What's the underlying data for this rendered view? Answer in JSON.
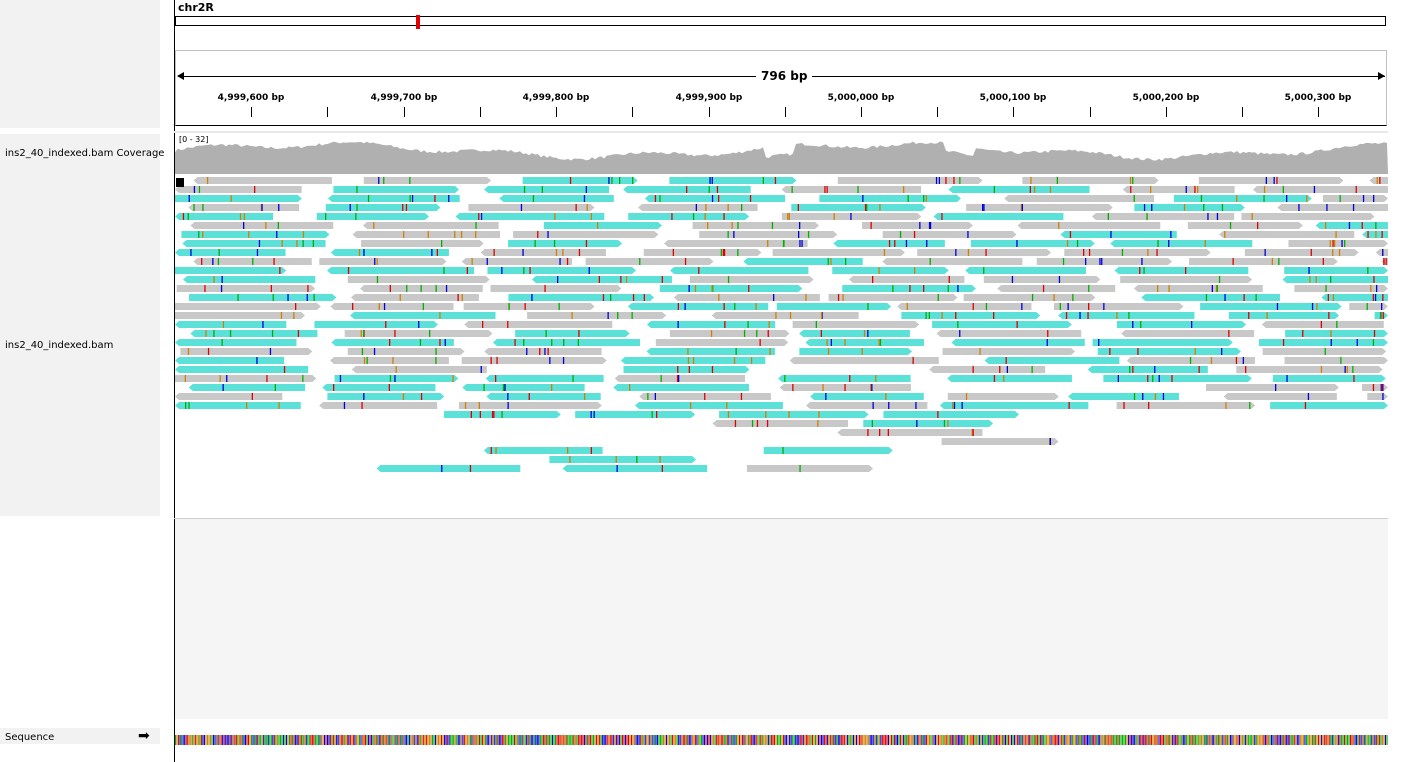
{
  "chromosome": "chr2R",
  "span_label": "796 bp",
  "ruler_ticks": [
    "4,999,600 bp",
    "4,999,700 bp",
    "4,999,800 bp",
    "4,999,900 bp",
    "5,000,000 bp",
    "5,000,100 bp",
    "5,000,200 bp",
    "5,000,300 bp"
  ],
  "tracks": {
    "coverage_name": "ins2_40_indexed.bam Coverage",
    "coverage_range": "[0 - 32]",
    "alignment_name": "ins2_40_indexed.bam",
    "sequence_name": "Sequence"
  },
  "colors": {
    "coverage": "#b0b0b0",
    "read_gray": "#c8c8c8",
    "read_teal": "#5ce1d9",
    "mismatch_a": "#00b000",
    "mismatch_c": "#0000e0",
    "mismatch_g": "#d08000",
    "mismatch_t": "#e00000",
    "background": "#ffffff",
    "panel": "#f2f2f2"
  },
  "icons": {
    "strand_arrow": "right-arrow-icon"
  }
}
